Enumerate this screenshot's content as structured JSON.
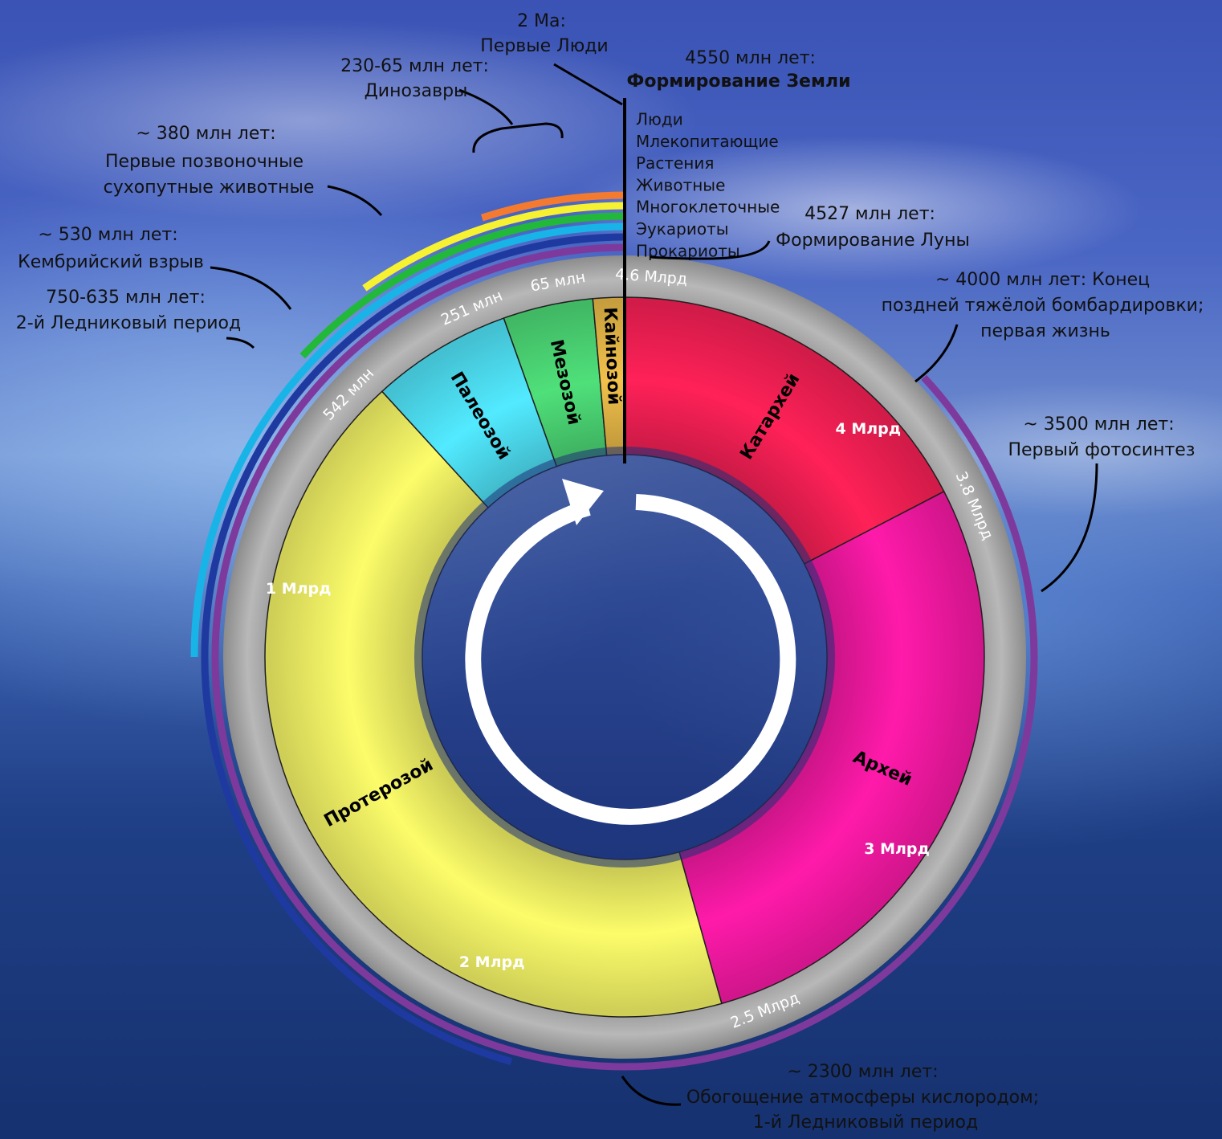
{
  "eras": [
    {
      "name": "Катархей",
      "start_ma": 4600,
      "end_ma": 3800,
      "color": "#ff2158"
    },
    {
      "name": "Архей",
      "start_ma": 3800,
      "end_ma": 2500,
      "color": "#ff1aaa"
    },
    {
      "name": "Протерозой",
      "start_ma": 2500,
      "end_ma": 542,
      "color": "#fcfc6a"
    },
    {
      "name": "Палеозой",
      "start_ma": 542,
      "end_ma": 251,
      "color": "#52eaff"
    },
    {
      "name": "Мезозой",
      "start_ma": 251,
      "end_ma": 65,
      "color": "#4fe07a"
    },
    {
      "name": "Кайнозой",
      "start_ma": 65,
      "end_ma": 0,
      "color": "#f2c14b"
    }
  ],
  "ring_ticks": [
    {
      "label": "4.6 Млрд",
      "ma": 4600
    },
    {
      "label": "3.8 Млрд",
      "ma": 3800
    },
    {
      "label": "2.5 Млрд",
      "ma": 2500
    },
    {
      "label": "542 млн",
      "ma": 542
    },
    {
      "label": "251 млн",
      "ma": 251
    },
    {
      "label": "65 млн",
      "ma": 65
    }
  ],
  "inner_ticks": [
    {
      "label": "4 Млрд",
      "ma": 4000
    },
    {
      "label": "3 Млрд",
      "ma": 3000
    },
    {
      "label": "2 Млрд",
      "ma": 2000
    },
    {
      "label": "1 Млрд",
      "ma": 1000
    }
  ],
  "life_arcs": [
    {
      "name": "Люди",
      "start_ma": 2,
      "color": "#333333"
    },
    {
      "name": "Млекопитающие",
      "start_ma": 230,
      "color": "#f47a30"
    },
    {
      "name": "Растения",
      "start_ma": 450,
      "color": "#f7f231"
    },
    {
      "name": "Животные",
      "start_ma": 600,
      "color": "#22b83a"
    },
    {
      "name": "Многоклеточные",
      "start_ma": 1150,
      "color": "#18b4e8"
    },
    {
      "name": "Эукариоты",
      "start_ma": 2100,
      "color": "#1e3aa0"
    },
    {
      "name": "Прокариоты",
      "start_ma": 4000,
      "color": "#7d3a9c"
    }
  ],
  "annotations": [
    {
      "lines": [
        "2 Ма:",
        "Первые Люди"
      ]
    },
    {
      "lines": [
        "4550 млн лет:",
        "Формирование Земли"
      ]
    },
    {
      "lines": [
        "230-65 млн лет:",
        "Динозавры"
      ]
    },
    {
      "lines": [
        "~ 380 млн лет:",
        "Первые позвоночные",
        "сухопутные животные"
      ]
    },
    {
      "lines": [
        "~ 530 млн лет:",
        "Кембрийский взрыв"
      ]
    },
    {
      "lines": [
        "750-635 млн лет:",
        "2-й Ледниковый период"
      ]
    },
    {
      "lines": [
        "4527 млн лет:",
        "Формирование Луны"
      ]
    },
    {
      "lines": [
        "~ 4000 млн лет: Конец",
        "поздней тяжёлой бомбардировки;",
        "первая жизнь"
      ]
    },
    {
      "lines": [
        "~ 3500 млн лет:",
        "Первый фотосинтез"
      ]
    },
    {
      "lines": [
        "~ 2300 млн лет:",
        "Обогощение атмосферы кислородом;",
        "1-й Ледниковый период"
      ]
    }
  ]
}
